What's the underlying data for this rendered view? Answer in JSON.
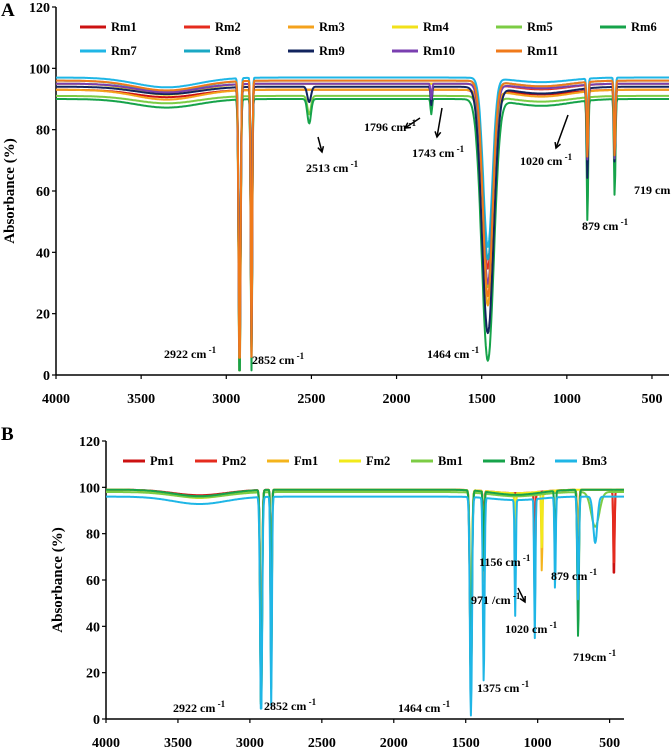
{
  "chart_data": [
    {
      "panel": "A",
      "type": "line",
      "ylabel": "Absorbance (%)",
      "xlabel": "",
      "xlim": [
        4000,
        400
      ],
      "ylim": [
        0,
        120
      ],
      "xticks": [
        4000,
        3500,
        3000,
        2500,
        2000,
        1500,
        1000,
        500
      ],
      "yticks": [
        0,
        20,
        40,
        60,
        80,
        100,
        120
      ],
      "legend": [
        {
          "name": "Rm1",
          "color": "#cc1111"
        },
        {
          "name": "Rm2",
          "color": "#e52b1e"
        },
        {
          "name": "Rm3",
          "color": "#f4a21c"
        },
        {
          "name": "Rm4",
          "color": "#f2e11a"
        },
        {
          "name": "Rm5",
          "color": "#7ccc44"
        },
        {
          "name": "Rm6",
          "color": "#16a34a"
        },
        {
          "name": "Rm7",
          "color": "#1fb6e6"
        },
        {
          "name": "Rm8",
          "color": "#1aa8c4"
        },
        {
          "name": "Rm9",
          "color": "#12245e"
        },
        {
          "name": "Rm10",
          "color": "#7a3fb0"
        },
        {
          "name": "Rm11",
          "color": "#f07a1a"
        }
      ],
      "annotations": [
        {
          "text": "2922 cm",
          "sup": " -1",
          "x": 2922
        },
        {
          "text": "2852 cm",
          "sup": " -1",
          "x": 2852
        },
        {
          "text": "2513 cm",
          "sup": " -1",
          "x": 2513
        },
        {
          "text": "1796 cm",
          "sup": " -1",
          "x": 1796
        },
        {
          "text": "1743 cm",
          "sup": " -1",
          "x": 1743
        },
        {
          "text": "1464 cm",
          "sup": " -1",
          "x": 1464
        },
        {
          "text": "1020 cm",
          "sup": " -1",
          "x": 1020
        },
        {
          "text": "879 cm",
          "sup": " -1",
          "x": 879
        },
        {
          "text": "719 cm",
          "sup": " -1",
          "x": 719
        }
      ],
      "series": [
        {
          "name": "Rm1",
          "color": "#cc1111",
          "base": 93,
          "bands": [
            [
              2922,
              8,
              88
            ],
            [
              2852,
              6,
              86
            ],
            [
              1464,
              45,
              58
            ],
            [
              879,
              6,
              20
            ],
            [
              719,
              6,
              25
            ]
          ]
        },
        {
          "name": "Rm2",
          "color": "#e52b1e",
          "base": 95,
          "bands": [
            [
              2922,
              8,
              95
            ],
            [
              2852,
              6,
              90
            ],
            [
              1464,
              40,
              60
            ],
            [
              879,
              6,
              20
            ],
            [
              719,
              6,
              25
            ]
          ]
        },
        {
          "name": "Rm3",
          "color": "#f4a21c",
          "base": 93,
          "bands": [
            [
              2922,
              8,
              98
            ],
            [
              2852,
              6,
              88
            ],
            [
              1464,
              40,
              70
            ],
            [
              879,
              6,
              25
            ],
            [
              719,
              6,
              25
            ]
          ]
        },
        {
          "name": "Rm4",
          "color": "#f2e11a",
          "base": 95,
          "bands": [
            [
              2922,
              8,
              95
            ],
            [
              2852,
              6,
              80
            ],
            [
              1464,
              40,
              65
            ],
            [
              879,
              6,
              25
            ],
            [
              719,
              6,
              25
            ]
          ]
        },
        {
          "name": "Rm5",
          "color": "#7ccc44",
          "base": 91,
          "bands": [
            [
              2922,
              8,
              90
            ],
            [
              2852,
              6,
              82
            ],
            [
              2513,
              15,
              6
            ],
            [
              1464,
              42,
              62
            ],
            [
              879,
              6,
              30
            ],
            [
              719,
              6,
              25
            ]
          ]
        },
        {
          "name": "Rm6",
          "color": "#16a34a",
          "base": 90,
          "bands": [
            [
              2922,
              8,
              95
            ],
            [
              2852,
              6,
              90
            ],
            [
              2513,
              15,
              8
            ],
            [
              1796,
              6,
              5
            ],
            [
              1464,
              50,
              85
            ],
            [
              879,
              6,
              40
            ],
            [
              719,
              6,
              32
            ]
          ]
        },
        {
          "name": "Rm7",
          "color": "#1fb6e6",
          "base": 97,
          "bands": [
            [
              2922,
              8,
              92
            ],
            [
              2852,
              6,
              88
            ],
            [
              1464,
              38,
              55
            ],
            [
              879,
              6,
              20
            ],
            [
              719,
              6,
              20
            ]
          ]
        },
        {
          "name": "Rm8",
          "color": "#1aa8c4",
          "base": 96,
          "bands": [
            [
              2922,
              8,
              95
            ],
            [
              2852,
              6,
              85
            ],
            [
              1464,
              40,
              58
            ],
            [
              879,
              6,
              25
            ],
            [
              719,
              6,
              25
            ]
          ]
        },
        {
          "name": "Rm9",
          "color": "#12245e",
          "base": 94,
          "bands": [
            [
              2922,
              8,
              90
            ],
            [
              2852,
              6,
              85
            ],
            [
              2513,
              15,
              5
            ],
            [
              1796,
              6,
              6
            ],
            [
              1464,
              48,
              80
            ],
            [
              879,
              6,
              30
            ],
            [
              719,
              6,
              25
            ]
          ]
        },
        {
          "name": "Rm10",
          "color": "#7a3fb0",
          "base": 95,
          "bands": [
            [
              2922,
              8,
              92
            ],
            [
              2852,
              6,
              85
            ],
            [
              1796,
              6,
              5
            ],
            [
              1464,
              42,
              65
            ],
            [
              879,
              6,
              25
            ],
            [
              719,
              6,
              25
            ]
          ]
        },
        {
          "name": "Rm11",
          "color": "#f07a1a",
          "base": 96,
          "bands": [
            [
              2922,
              8,
              96
            ],
            [
              2852,
              6,
              90
            ],
            [
              1464,
              40,
              70
            ],
            [
              879,
              6,
              25
            ],
            [
              719,
              6,
              25
            ]
          ]
        }
      ]
    },
    {
      "panel": "B",
      "type": "line",
      "ylabel": "Absorbance (%)",
      "xlabel": "",
      "xlim": [
        4000,
        400
      ],
      "ylim": [
        0,
        120
      ],
      "xticks": [
        4000,
        3500,
        3000,
        2500,
        2000,
        1500,
        1000,
        500
      ],
      "yticks": [
        0,
        20,
        40,
        60,
        80,
        100,
        120
      ],
      "legend": [
        {
          "name": "Pm1",
          "color": "#cc1111"
        },
        {
          "name": "Pm2",
          "color": "#e52b1e"
        },
        {
          "name": "Fm1",
          "color": "#f4b41c"
        },
        {
          "name": "Fm2",
          "color": "#f2ea1a"
        },
        {
          "name": "Bm1",
          "color": "#7ccc44"
        },
        {
          "name": "Bm2",
          "color": "#16a34a"
        },
        {
          "name": "Bm3",
          "color": "#1fb6e6"
        }
      ],
      "annotations": [
        {
          "text": "2922 cm",
          "sup": " -1",
          "x": 2922
        },
        {
          "text": "2852 cm",
          "sup": " -1",
          "x": 2852
        },
        {
          "text": "1464 cm",
          "sup": " -1",
          "x": 1464
        },
        {
          "text": "1375 cm",
          "sup": " -1",
          "x": 1375
        },
        {
          "text": "1156 cm",
          "sup": " -1",
          "x": 1156
        },
        {
          "text": "971 /cm",
          "sup": " -1",
          "x": 971
        },
        {
          "text": "1020 cm",
          "sup": " -1",
          "x": 1020
        },
        {
          "text": "879 cm",
          "sup": " -1",
          "x": 879
        },
        {
          "text": "719cm",
          "sup": " -1",
          "x": 719
        }
      ],
      "series": [
        {
          "name": "Pm1",
          "color": "#cc1111",
          "base": 99,
          "bands": [
            [
              2922,
              9,
              84
            ],
            [
              2852,
              6,
              70
            ],
            [
              1464,
              10,
              84
            ],
            [
              1375,
              6,
              20
            ],
            [
              1020,
              5,
              50
            ],
            [
              719,
              8,
              30
            ],
            [
              470,
              6,
              40
            ]
          ]
        },
        {
          "name": "Pm2",
          "color": "#e52b1e",
          "base": 99,
          "bands": [
            [
              2922,
              9,
              90
            ],
            [
              2852,
              6,
              80
            ],
            [
              1464,
              10,
              70
            ],
            [
              1375,
              6,
              20
            ],
            [
              1020,
              5,
              55
            ],
            [
              719,
              8,
              25
            ],
            [
              470,
              6,
              35
            ]
          ]
        },
        {
          "name": "Fm1",
          "color": "#f4b41c",
          "base": 99,
          "bands": [
            [
              2922,
              9,
              95
            ],
            [
              2852,
              6,
              85
            ],
            [
              1464,
              10,
              85
            ],
            [
              1375,
              6,
              40
            ],
            [
              1156,
              5,
              30
            ],
            [
              971,
              5,
              35
            ],
            [
              719,
              8,
              20
            ]
          ]
        },
        {
          "name": "Fm2",
          "color": "#f2ea1a",
          "base": 99,
          "bands": [
            [
              2922,
              9,
              90
            ],
            [
              2852,
              6,
              80
            ],
            [
              1464,
              10,
              60
            ],
            [
              1375,
              6,
              30
            ],
            [
              1156,
              5,
              20
            ],
            [
              971,
              5,
              25
            ]
          ]
        },
        {
          "name": "Bm1",
          "color": "#7ccc44",
          "base": 98,
          "bands": [
            [
              2922,
              9,
              95
            ],
            [
              2852,
              6,
              85
            ],
            [
              1464,
              10,
              70
            ],
            [
              1375,
              6,
              30
            ],
            [
              719,
              8,
              50
            ],
            [
              600,
              40,
              15
            ]
          ]
        },
        {
          "name": "Bm2",
          "color": "#16a34a",
          "base": 99,
          "bands": [
            [
              2922,
              9,
              97
            ],
            [
              2852,
              6,
              80
            ],
            [
              1464,
              10,
              85
            ],
            [
              1375,
              6,
              35
            ],
            [
              879,
              6,
              30
            ],
            [
              719,
              8,
              64
            ]
          ]
        },
        {
          "name": "Bm3",
          "color": "#1fb6e6",
          "base": 96,
          "bands": [
            [
              2922,
              10,
              95
            ],
            [
              2852,
              7,
              90
            ],
            [
              1464,
              10,
              97
            ],
            [
              1375,
              8,
              80
            ],
            [
              1156,
              6,
              50
            ],
            [
              1020,
              6,
              60
            ],
            [
              879,
              6,
              40
            ],
            [
              719,
              8,
              45
            ],
            [
              600,
              20,
              20
            ]
          ]
        }
      ]
    }
  ],
  "panel_labels": {
    "a": "A",
    "b": "B"
  }
}
